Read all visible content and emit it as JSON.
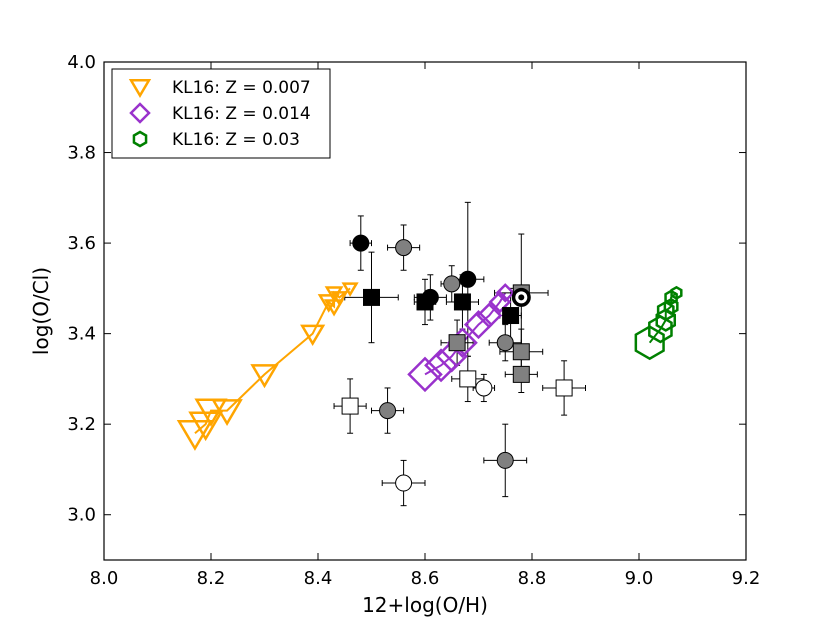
{
  "chart_data": {
    "type": "scatter",
    "title": "",
    "xlabel": "12+log(O/H)",
    "ylabel": "log(O/Cl)",
    "xlim": [
      8.0,
      9.2
    ],
    "ylim": [
      2.9,
      4.0
    ],
    "xticks": [
      "8.0",
      "8.2",
      "8.4",
      "8.6",
      "8.8",
      "9.0",
      "9.2"
    ],
    "yticks": [
      "3.0",
      "3.2",
      "3.4",
      "3.6",
      "3.8",
      "4.0"
    ],
    "legend_position": "top-left",
    "legend": [
      {
        "label": "KL16: Z = 0.007",
        "marker": "triangle-down",
        "color": "#FFA500"
      },
      {
        "label": "KL16: Z = 0.014",
        "marker": "diamond",
        "color": "#9932CC"
      },
      {
        "label": "KL16: Z = 0.03",
        "marker": "hexagon",
        "color": "#008000"
      }
    ],
    "series": [
      {
        "name": "KL16: Z = 0.007",
        "style": "model",
        "marker": "triangle-down",
        "color": "#FFA500",
        "points": [
          {
            "x": 8.17,
            "y": 3.18,
            "s": 1.0
          },
          {
            "x": 8.19,
            "y": 3.2,
            "s": 0.95
          },
          {
            "x": 8.2,
            "y": 3.23,
            "s": 0.9
          },
          {
            "x": 8.23,
            "y": 3.23,
            "s": 0.85
          },
          {
            "x": 8.3,
            "y": 3.31,
            "s": 0.75
          },
          {
            "x": 8.39,
            "y": 3.4,
            "s": 0.65
          },
          {
            "x": 8.42,
            "y": 3.47,
            "s": 0.55
          },
          {
            "x": 8.43,
            "y": 3.46,
            "s": 0.5
          },
          {
            "x": 8.43,
            "y": 3.49,
            "s": 0.45
          },
          {
            "x": 8.44,
            "y": 3.48,
            "s": 0.42
          },
          {
            "x": 8.46,
            "y": 3.5,
            "s": 0.4
          }
        ]
      },
      {
        "name": "KL16: Z = 0.014",
        "style": "model",
        "marker": "diamond",
        "color": "#9932CC",
        "points": [
          {
            "x": 8.6,
            "y": 3.31,
            "s": 1.0
          },
          {
            "x": 8.63,
            "y": 3.33,
            "s": 0.95
          },
          {
            "x": 8.65,
            "y": 3.35,
            "s": 0.9
          },
          {
            "x": 8.67,
            "y": 3.38,
            "s": 0.85
          },
          {
            "x": 8.7,
            "y": 3.42,
            "s": 0.8
          },
          {
            "x": 8.72,
            "y": 3.44,
            "s": 0.7
          },
          {
            "x": 8.74,
            "y": 3.47,
            "s": 0.6
          },
          {
            "x": 8.75,
            "y": 3.49,
            "s": 0.5
          }
        ]
      },
      {
        "name": "KL16: Z = 0.03",
        "style": "model",
        "marker": "hexagon",
        "color": "#008000",
        "points": [
          {
            "x": 9.02,
            "y": 3.38,
            "s": 1.0
          },
          {
            "x": 9.04,
            "y": 3.41,
            "s": 0.8
          },
          {
            "x": 9.05,
            "y": 3.43,
            "s": 0.65
          },
          {
            "x": 9.05,
            "y": 3.45,
            "s": 0.55
          },
          {
            "x": 9.06,
            "y": 3.46,
            "s": 0.45
          },
          {
            "x": 9.06,
            "y": 3.48,
            "s": 0.4
          },
          {
            "x": 9.07,
            "y": 3.49,
            "s": 0.35
          }
        ]
      },
      {
        "name": "Black circles",
        "style": "obs",
        "marker": "circle",
        "fill": "#000000",
        "points": [
          {
            "x": 8.48,
            "y": 3.6,
            "xerr": 0.02,
            "yerr": 0.06
          },
          {
            "x": 8.61,
            "y": 3.48,
            "xerr": 0.03,
            "yerr": 0.05
          },
          {
            "x": 8.68,
            "y": 3.52,
            "xerr": 0.03,
            "yerr": 0.17
          }
        ]
      },
      {
        "name": "Grey circles",
        "style": "obs",
        "marker": "circle",
        "fill": "#808080",
        "points": [
          {
            "x": 8.56,
            "y": 3.59,
            "xerr": 0.03,
            "yerr": 0.05
          },
          {
            "x": 8.65,
            "y": 3.51,
            "xerr": 0.02,
            "yerr": 0.04
          },
          {
            "x": 8.53,
            "y": 3.23,
            "xerr": 0.03,
            "yerr": 0.05
          },
          {
            "x": 8.75,
            "y": 3.38,
            "xerr": 0.03,
            "yerr": 0.04
          },
          {
            "x": 8.75,
            "y": 3.12,
            "xerr": 0.04,
            "yerr": 0.08
          }
        ]
      },
      {
        "name": "White circles",
        "style": "obs",
        "marker": "circle",
        "fill": "#ffffff",
        "points": [
          {
            "x": 8.71,
            "y": 3.28,
            "xerr": 0.02,
            "yerr": 0.03
          },
          {
            "x": 8.56,
            "y": 3.07,
            "xerr": 0.04,
            "yerr": 0.05
          }
        ]
      },
      {
        "name": "Black squares",
        "style": "obs",
        "marker": "square",
        "fill": "#000000",
        "points": [
          {
            "x": 8.5,
            "y": 3.48,
            "xerr": 0.05,
            "yerr": 0.1
          },
          {
            "x": 8.6,
            "y": 3.47,
            "xerr": 0.02,
            "yerr": 0.05
          },
          {
            "x": 8.67,
            "y": 3.47,
            "xerr": 0.03,
            "yerr": 0.06
          },
          {
            "x": 8.76,
            "y": 3.44,
            "xerr": 0.02,
            "yerr": 0.06
          }
        ]
      },
      {
        "name": "Grey squares",
        "style": "obs",
        "marker": "square",
        "fill": "#808080",
        "points": [
          {
            "x": 8.78,
            "y": 3.49,
            "xerr": 0.05,
            "yerr": 0.13
          },
          {
            "x": 8.66,
            "y": 3.38,
            "xerr": 0.03,
            "yerr": 0.05
          },
          {
            "x": 8.78,
            "y": 3.36,
            "xerr": 0.04,
            "yerr": 0.05
          },
          {
            "x": 8.78,
            "y": 3.31,
            "xerr": 0.03,
            "yerr": 0.04
          }
        ]
      },
      {
        "name": "White squares",
        "style": "obs",
        "marker": "square",
        "fill": "#ffffff",
        "points": [
          {
            "x": 8.46,
            "y": 3.24,
            "xerr": 0.03,
            "yerr": 0.06
          },
          {
            "x": 8.68,
            "y": 3.3,
            "xerr": 0.03,
            "yerr": 0.05
          },
          {
            "x": 8.86,
            "y": 3.28,
            "xerr": 0.04,
            "yerr": 0.06
          }
        ]
      },
      {
        "name": "Sun",
        "style": "obs",
        "marker": "sun",
        "fill": "#000000",
        "points": [
          {
            "x": 8.78,
            "y": 3.48,
            "xerr": 0,
            "yerr": 0
          }
        ]
      }
    ]
  }
}
